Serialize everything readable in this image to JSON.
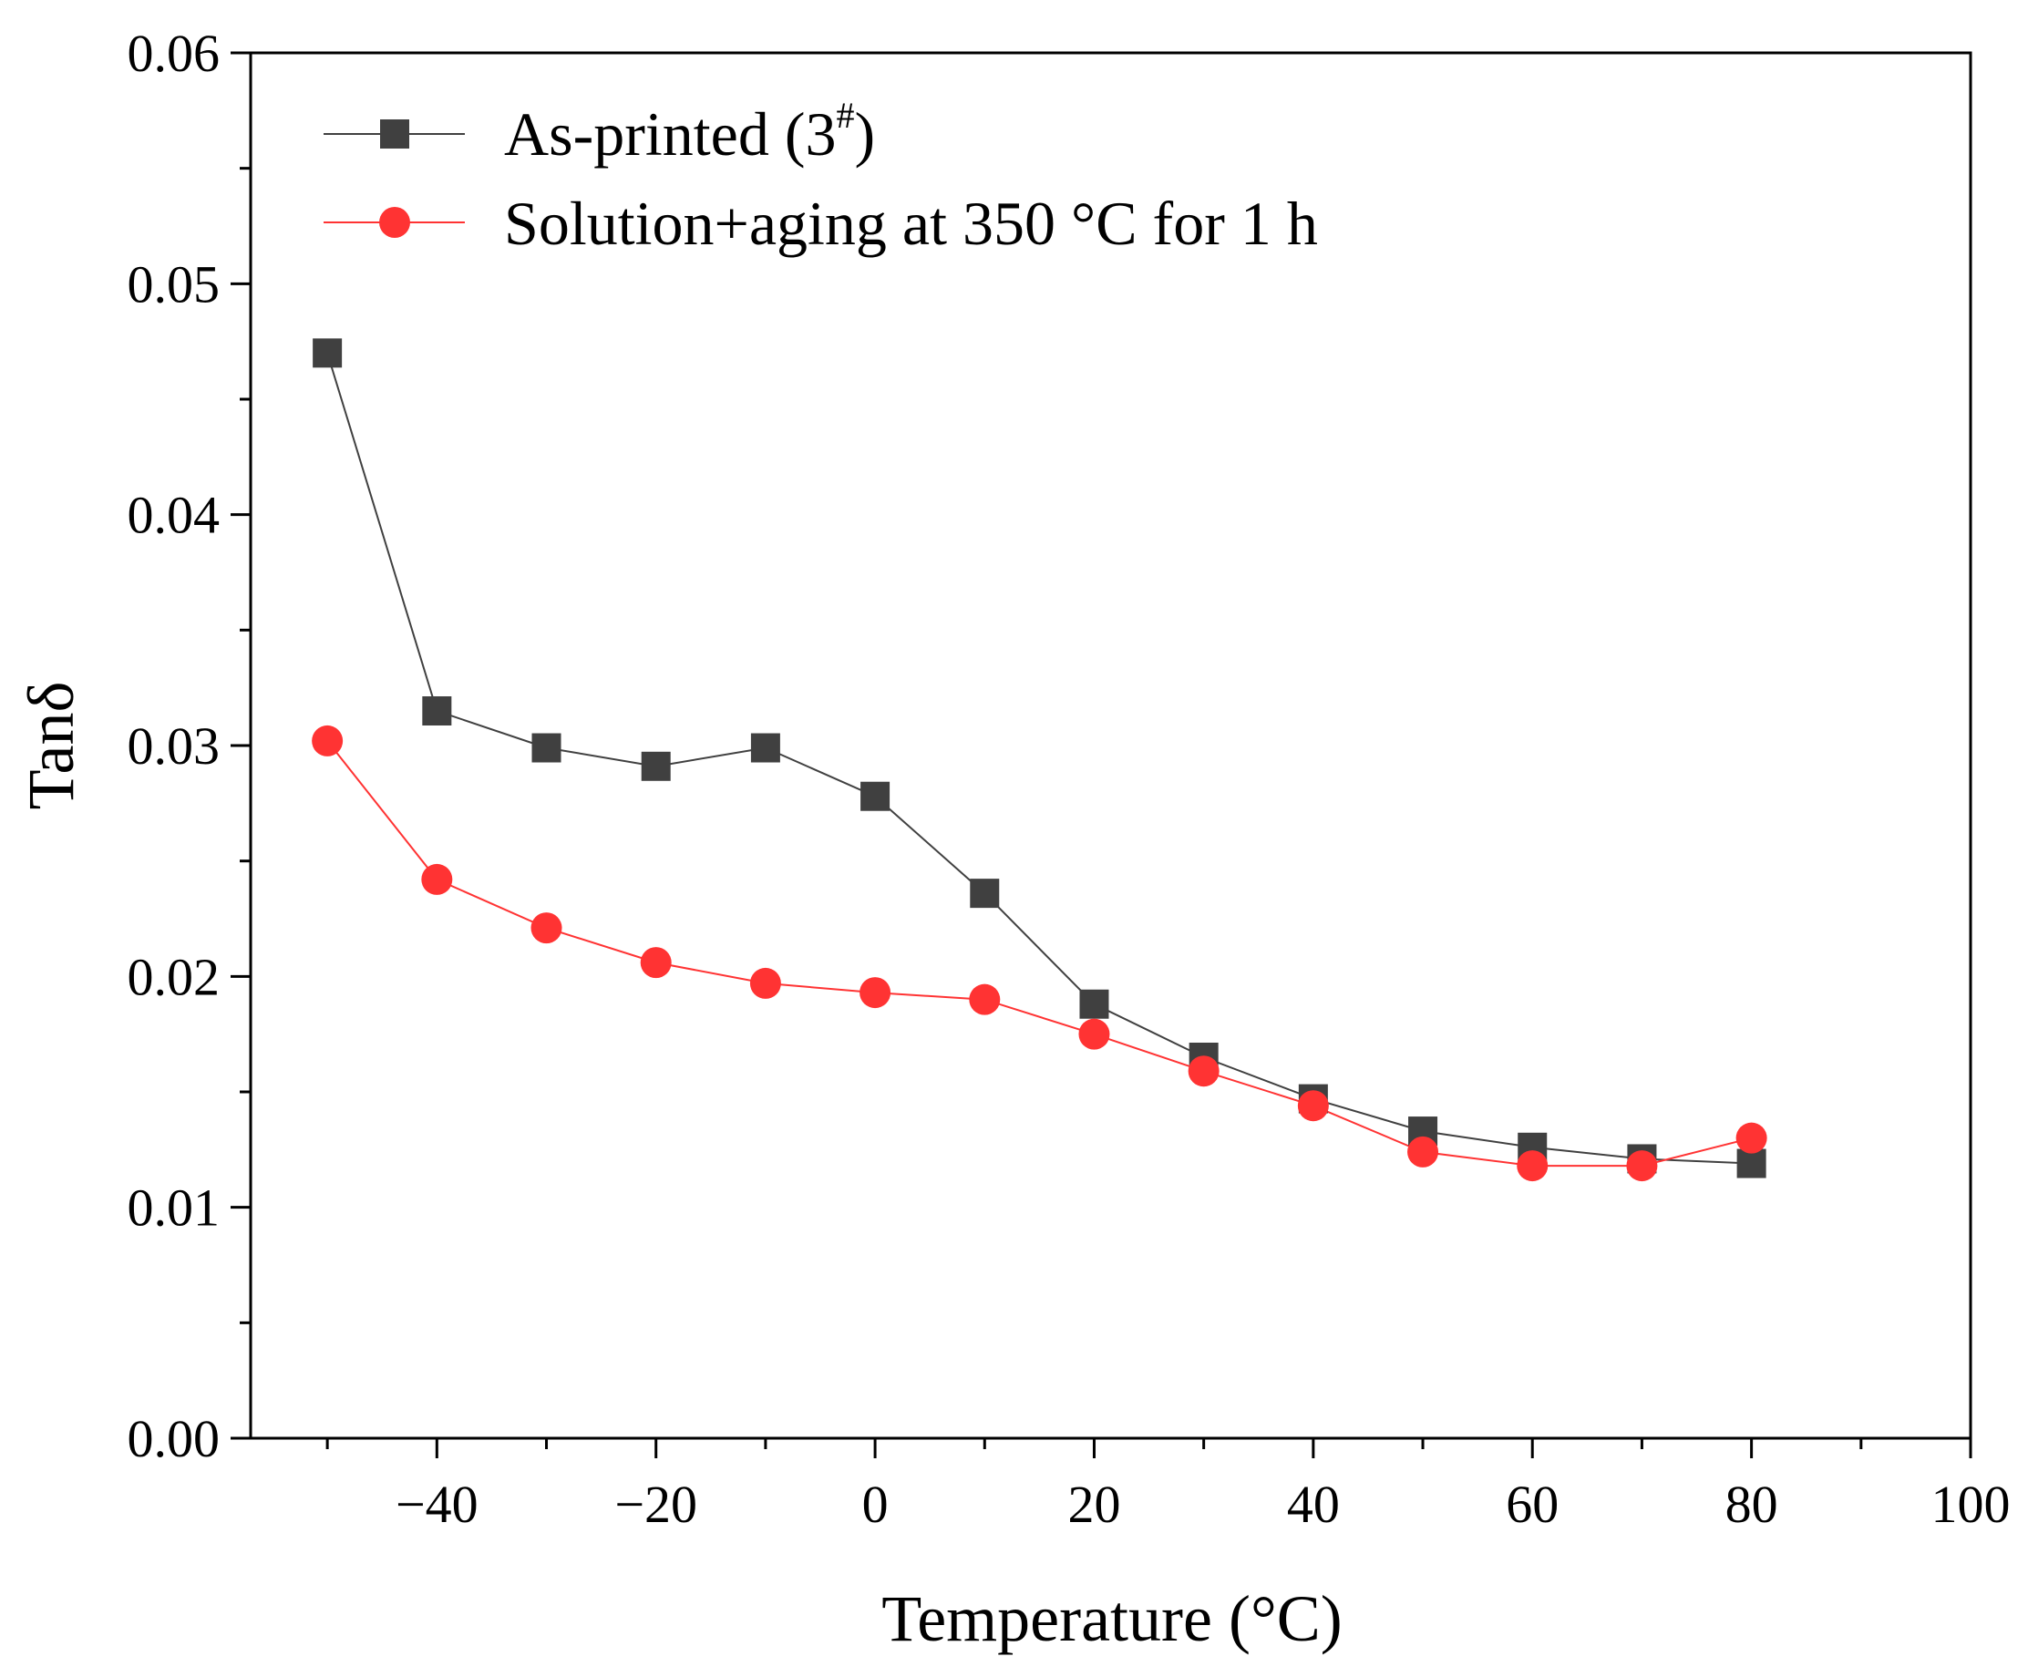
{
  "chart_data": {
    "type": "line",
    "title": "",
    "xlabel": "Temperature (°C)",
    "ylabel": "Tanδ",
    "xlim": [
      -57,
      100
    ],
    "ylim": [
      0,
      0.06
    ],
    "x_ticks": [
      -40,
      -20,
      0,
      20,
      40,
      60,
      80,
      100
    ],
    "x_tick_labels": [
      "−40",
      "−20",
      "0",
      "20",
      "40",
      "60",
      "80",
      "100"
    ],
    "y_ticks": [
      0,
      0.01,
      0.02,
      0.03,
      0.04,
      0.05,
      0.06
    ],
    "y_tick_labels": [
      "0.00",
      "0.01",
      "0.02",
      "0.03",
      "0.04",
      "0.05",
      "0.06"
    ],
    "grid": false,
    "legend_position": "top-left",
    "x": [
      -50,
      -40,
      -30,
      -20,
      -10,
      0,
      10,
      20,
      30,
      40,
      50,
      60,
      70,
      80
    ],
    "series": [
      {
        "name": "As-printed (3#)",
        "legend_main": "As-printed (3",
        "legend_sup": "#",
        "legend_tail": ")",
        "marker": "square",
        "color": "#404040",
        "values": [
          0.047,
          0.0315,
          0.0299,
          0.0291,
          0.0299,
          0.0278,
          0.0236,
          0.0188,
          0.0165,
          0.0147,
          0.0133,
          0.0126,
          0.0121,
          0.0119
        ]
      },
      {
        "name": "Solution+aging at 350 °C for 1 h",
        "legend_main": "Solution+aging at 350 °C for 1 h",
        "marker": "circle",
        "color": "#ff3333",
        "values": [
          0.0302,
          0.0242,
          0.0221,
          0.0206,
          0.0197,
          0.0193,
          0.019,
          0.0175,
          0.0159,
          0.0144,
          0.0124,
          0.0118,
          0.0118,
          0.013
        ]
      }
    ]
  }
}
